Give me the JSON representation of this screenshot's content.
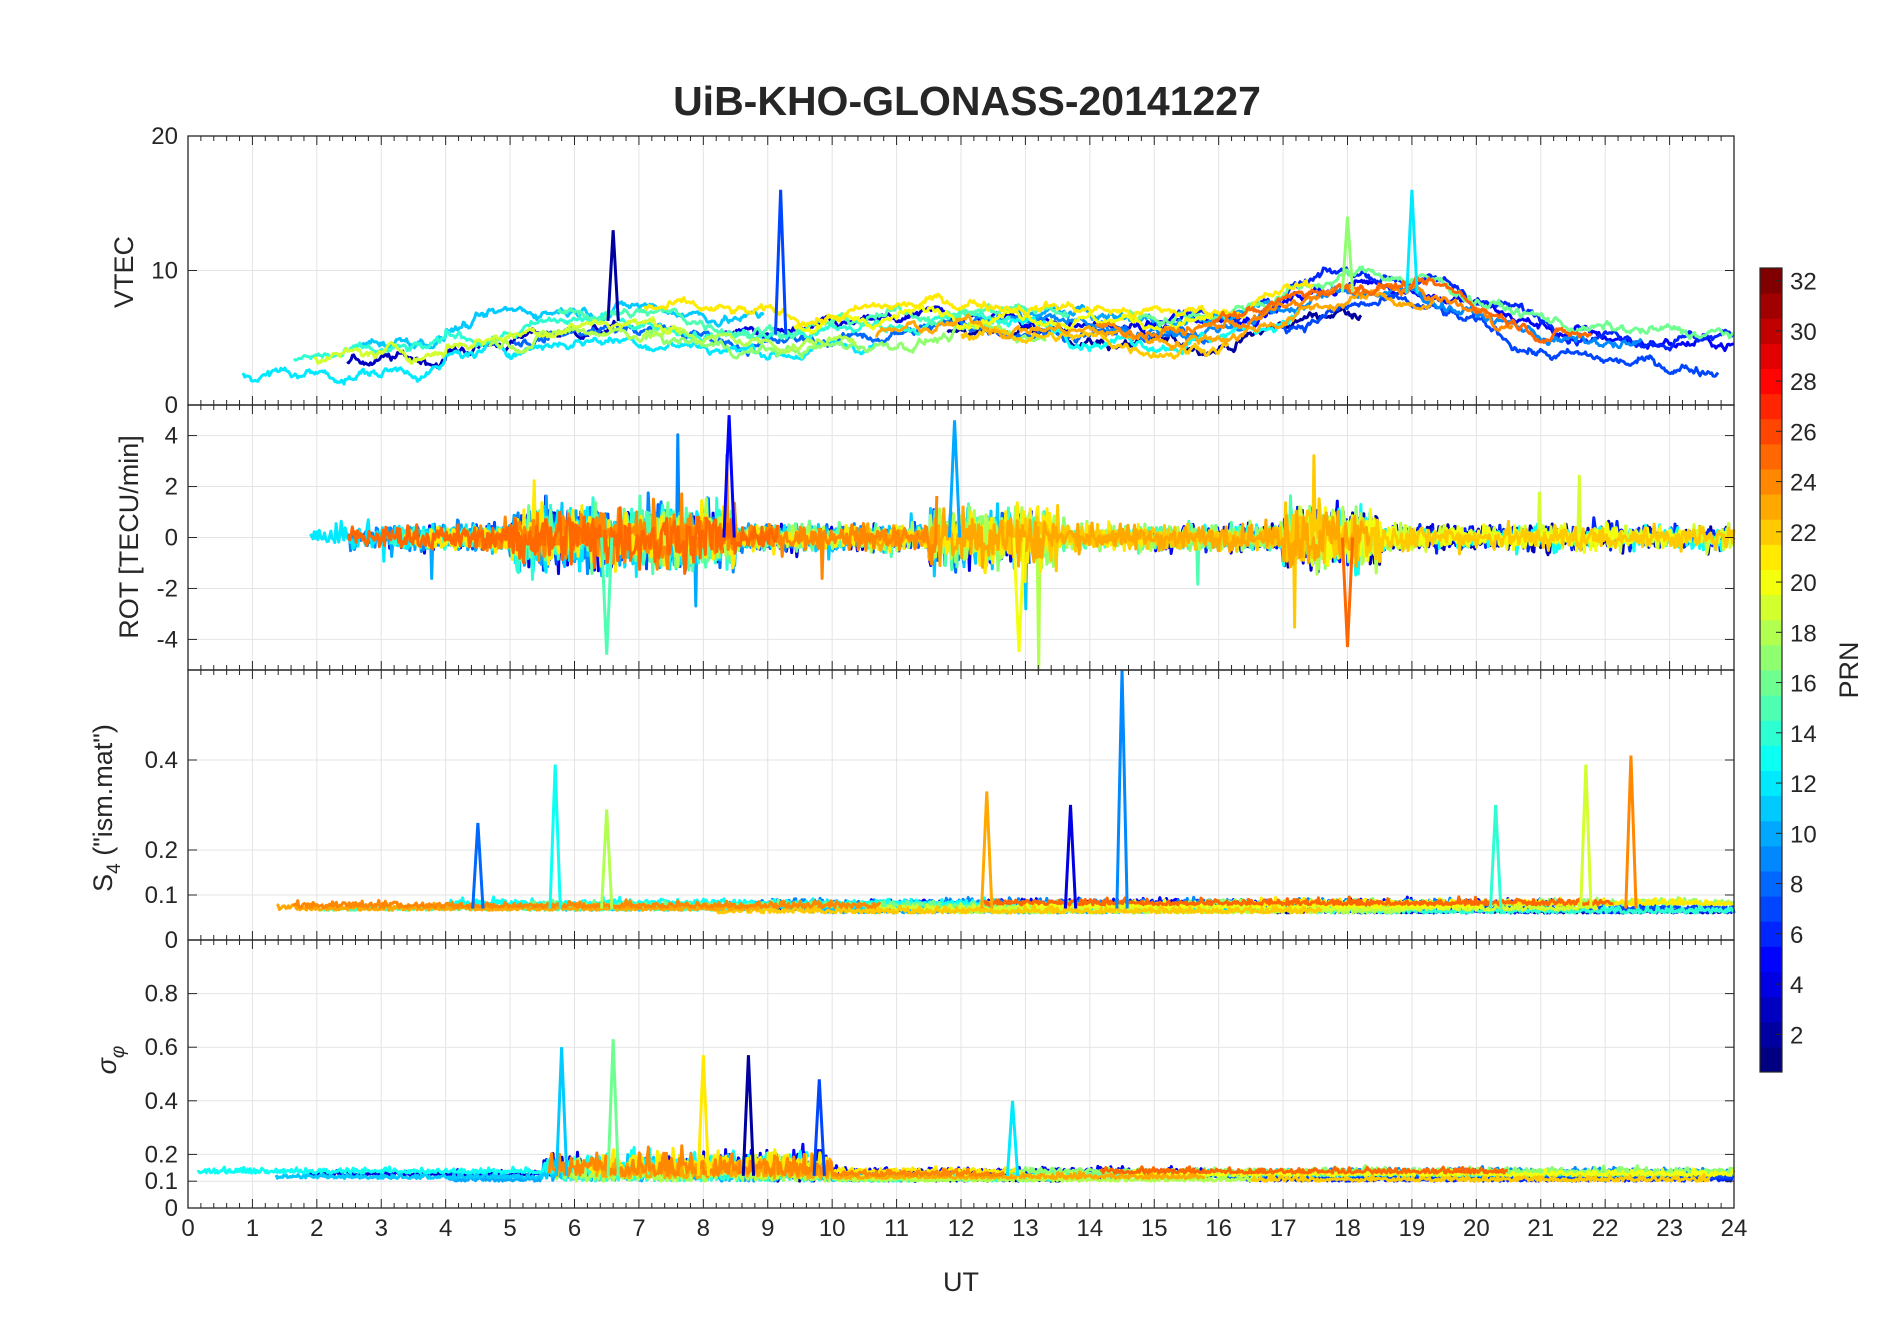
{
  "title": "UiB-KHO-GLONASS-20141227",
  "x_axis": {
    "label": "UT",
    "ticks": [
      0,
      1,
      2,
      3,
      4,
      5,
      6,
      7,
      8,
      9,
      10,
      11,
      12,
      13,
      14,
      15,
      16,
      17,
      18,
      19,
      20,
      21,
      22,
      23,
      24
    ]
  },
  "colorbar": {
    "label": "PRN",
    "colormap": "jet",
    "range": [
      1,
      32
    ],
    "ticks": [
      2,
      4,
      6,
      8,
      10,
      12,
      14,
      16,
      18,
      20,
      22,
      24,
      26,
      28,
      30,
      32
    ]
  },
  "chart_data": [
    {
      "type": "line",
      "ylabel": "VTEC",
      "xlim": [
        0,
        24
      ],
      "ylim": [
        0,
        20
      ],
      "yticks": [
        0,
        10,
        20
      ],
      "grid": true,
      "series_count": 24,
      "x": [
        0,
        1,
        2,
        3,
        4,
        5,
        6,
        7,
        8,
        9,
        10,
        11,
        12,
        13,
        14,
        15,
        16,
        17,
        18,
        19,
        20,
        21,
        22,
        23,
        24
      ],
      "features": [
        {
          "x": 6.6,
          "y": 13
        },
        {
          "x": 9.2,
          "y": 16
        },
        {
          "x": 19.0,
          "y": 16
        },
        {
          "x": 18.0,
          "y": 14
        }
      ]
    },
    {
      "type": "line",
      "ylabel": "ROT [TECU/min]",
      "xlim": [
        0,
        24
      ],
      "ylim": [
        -5.2,
        5.2
      ],
      "yticks": [
        -4,
        -2,
        0,
        2,
        4
      ],
      "grid": true,
      "series_count": 24,
      "features": [
        {
          "x": 8.4,
          "y": 4.8
        },
        {
          "x": 11.9,
          "y": 4.6
        },
        {
          "x": 6.5,
          "y": -4.6
        },
        {
          "x": 12.9,
          "y": -4.5
        },
        {
          "x": 18.0,
          "y": -4.3
        }
      ]
    },
    {
      "type": "line",
      "ylabel": "S4 (\"ism.mat\")",
      "xlim": [
        0,
        24
      ],
      "ylim": [
        0,
        0.6
      ],
      "yticks": [
        0,
        0.1,
        0.2,
        0.4
      ],
      "grid": true,
      "series_count": 24,
      "features": [
        {
          "x": 4.5,
          "y": 0.26
        },
        {
          "x": 5.7,
          "y": 0.39
        },
        {
          "x": 6.5,
          "y": 0.29
        },
        {
          "x": 12.4,
          "y": 0.33
        },
        {
          "x": 13.7,
          "y": 0.3
        },
        {
          "x": 14.5,
          "y": 0.6
        },
        {
          "x": 20.3,
          "y": 0.3
        },
        {
          "x": 21.7,
          "y": 0.39
        },
        {
          "x": 22.4,
          "y": 0.41
        }
      ]
    },
    {
      "type": "line",
      "ylabel": "σφ",
      "xlim": [
        0,
        24
      ],
      "ylim": [
        0,
        1
      ],
      "yticks": [
        0,
        0.1,
        0.2,
        0.4,
        0.6,
        0.8
      ],
      "grid": true,
      "series_count": 24,
      "features": [
        {
          "x": 5.8,
          "y": 0.6
        },
        {
          "x": 6.6,
          "y": 0.63
        },
        {
          "x": 8.0,
          "y": 0.57
        },
        {
          "x": 8.7,
          "y": 0.57
        },
        {
          "x": 9.8,
          "y": 0.48
        },
        {
          "x": 12.8,
          "y": 0.4
        }
      ]
    }
  ]
}
